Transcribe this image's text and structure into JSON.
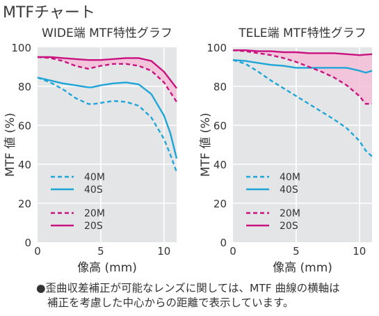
{
  "page_title": "MTFチャート",
  "footnote": {
    "line1": "●歪曲収差補正が可能なレンズに関しては、MTF 曲線の横軸は",
    "line2": "補正を考慮した中心からの距離で表示しています。"
  },
  "colors": {
    "S_series": "#1ea5d8",
    "M_series": "#c8127f",
    "plot_bg": "#e4e5e6",
    "fill": "#f4bfd8"
  },
  "chart_data": [
    {
      "type": "line",
      "title": "WIDE端 MTF特性グラフ",
      "xlabel": "像高 (mm)",
      "ylabel": "MTF 値 (%)",
      "xlim": [
        0,
        11
      ],
      "ylim": [
        0,
        100
      ],
      "xticks": [
        0,
        5,
        10
      ],
      "yticks": [
        0,
        20,
        40,
        60,
        80,
        100
      ],
      "grid": true,
      "legend_position": "bottom-left",
      "series": [
        {
          "name": "40M",
          "color": "#1ea5d8",
          "dash": true,
          "x": [
            0,
            1,
            2,
            3,
            4,
            4.3,
            5,
            6,
            7,
            8,
            9,
            10,
            10.5,
            11
          ],
          "y": [
            84.5,
            82,
            78.5,
            74,
            71,
            70.8,
            71.5,
            72.5,
            72,
            70,
            64,
            53,
            45,
            36
          ]
        },
        {
          "name": "40S",
          "color": "#1ea5d8",
          "dash": false,
          "x": [
            0,
            1,
            2,
            3,
            4,
            4.3,
            5,
            6,
            7,
            8,
            9,
            10,
            10.5,
            11
          ],
          "y": [
            84.5,
            83,
            81.5,
            80.5,
            79.5,
            79.5,
            80.5,
            81.5,
            82,
            81,
            76,
            65,
            56,
            43
          ]
        },
        {
          "name": "20M",
          "color": "#c8127f",
          "dash": true,
          "x": [
            0,
            1,
            2,
            3,
            4,
            5,
            6,
            7,
            8,
            9,
            10,
            11
          ],
          "y": [
            95,
            94.5,
            93,
            90.5,
            89,
            90.5,
            91.5,
            91.5,
            90.5,
            88,
            82,
            72
          ]
        },
        {
          "name": "20S",
          "color": "#c8127f",
          "dash": false,
          "x": [
            0,
            1,
            2,
            3,
            4,
            5,
            6,
            7,
            8,
            9,
            10,
            11
          ],
          "y": [
            95,
            95,
            94.5,
            94,
            93.5,
            93.5,
            94,
            94.5,
            94.5,
            93,
            87.5,
            79
          ]
        }
      ]
    },
    {
      "type": "line",
      "title": "TELE端 MTF特性グラフ",
      "xlabel": "像高 (mm)",
      "ylabel": "MTF 値 (%)",
      "xlim": [
        0,
        11
      ],
      "ylim": [
        0,
        100
      ],
      "xticks": [
        0,
        5,
        10
      ],
      "yticks": [
        0,
        20,
        40,
        60,
        80,
        100
      ],
      "grid": true,
      "legend_position": "bottom-left",
      "series": [
        {
          "name": "40M",
          "color": "#1ea5d8",
          "dash": true,
          "x": [
            0,
            1,
            2,
            3,
            4,
            5,
            6,
            7,
            8,
            9,
            10,
            10.5,
            11
          ],
          "y": [
            93.5,
            91.5,
            87.5,
            83,
            79,
            75,
            71,
            67,
            63,
            58.5,
            52,
            47,
            44
          ]
        },
        {
          "name": "40S",
          "color": "#1ea5d8",
          "dash": false,
          "x": [
            0,
            1,
            2,
            3,
            4,
            5,
            6,
            7,
            8,
            9,
            10,
            10.5,
            11
          ],
          "y": [
            93.5,
            93,
            92,
            91,
            90.5,
            89.5,
            89.5,
            89.5,
            89.5,
            89.5,
            88,
            87,
            88
          ]
        },
        {
          "name": "20M",
          "color": "#c8127f",
          "dash": true,
          "x": [
            0,
            1,
            2,
            3,
            4,
            5,
            6,
            7,
            8,
            9,
            10,
            10.5,
            11
          ],
          "y": [
            98.5,
            98,
            97,
            96,
            94.5,
            92.5,
            90,
            87.5,
            84.5,
            80.5,
            75,
            71,
            71
          ]
        },
        {
          "name": "20S",
          "color": "#c8127f",
          "dash": false,
          "x": [
            0,
            1,
            2,
            3,
            4,
            5,
            6,
            7,
            8,
            9,
            10,
            11
          ],
          "y": [
            98.5,
            98.5,
            98,
            98,
            97.5,
            97.5,
            97,
            97,
            97,
            96.5,
            96,
            96.5
          ]
        }
      ]
    }
  ]
}
